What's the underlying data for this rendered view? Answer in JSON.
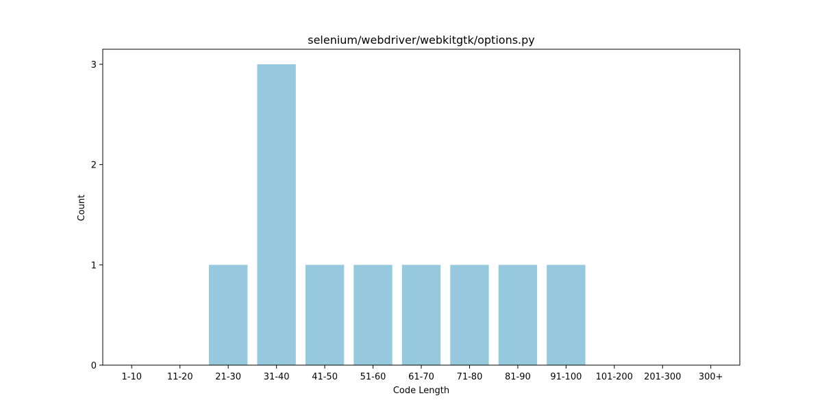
{
  "chart_data": {
    "type": "bar",
    "title": "selenium/webdriver/webkitgtk/options.py",
    "xlabel": "Code Length",
    "ylabel": "Count",
    "categories": [
      "1-10",
      "11-20",
      "21-30",
      "31-40",
      "41-50",
      "51-60",
      "61-70",
      "71-80",
      "81-90",
      "91-100",
      "101-200",
      "201-300",
      "300+"
    ],
    "values": [
      0,
      0,
      1,
      3,
      1,
      1,
      1,
      1,
      1,
      1,
      0,
      0,
      0
    ],
    "ylim": [
      0,
      3.15
    ],
    "yticks": [
      0,
      1,
      2,
      3
    ],
    "bar_color": "#96c9dd",
    "grid": false,
    "legend": "none"
  }
}
